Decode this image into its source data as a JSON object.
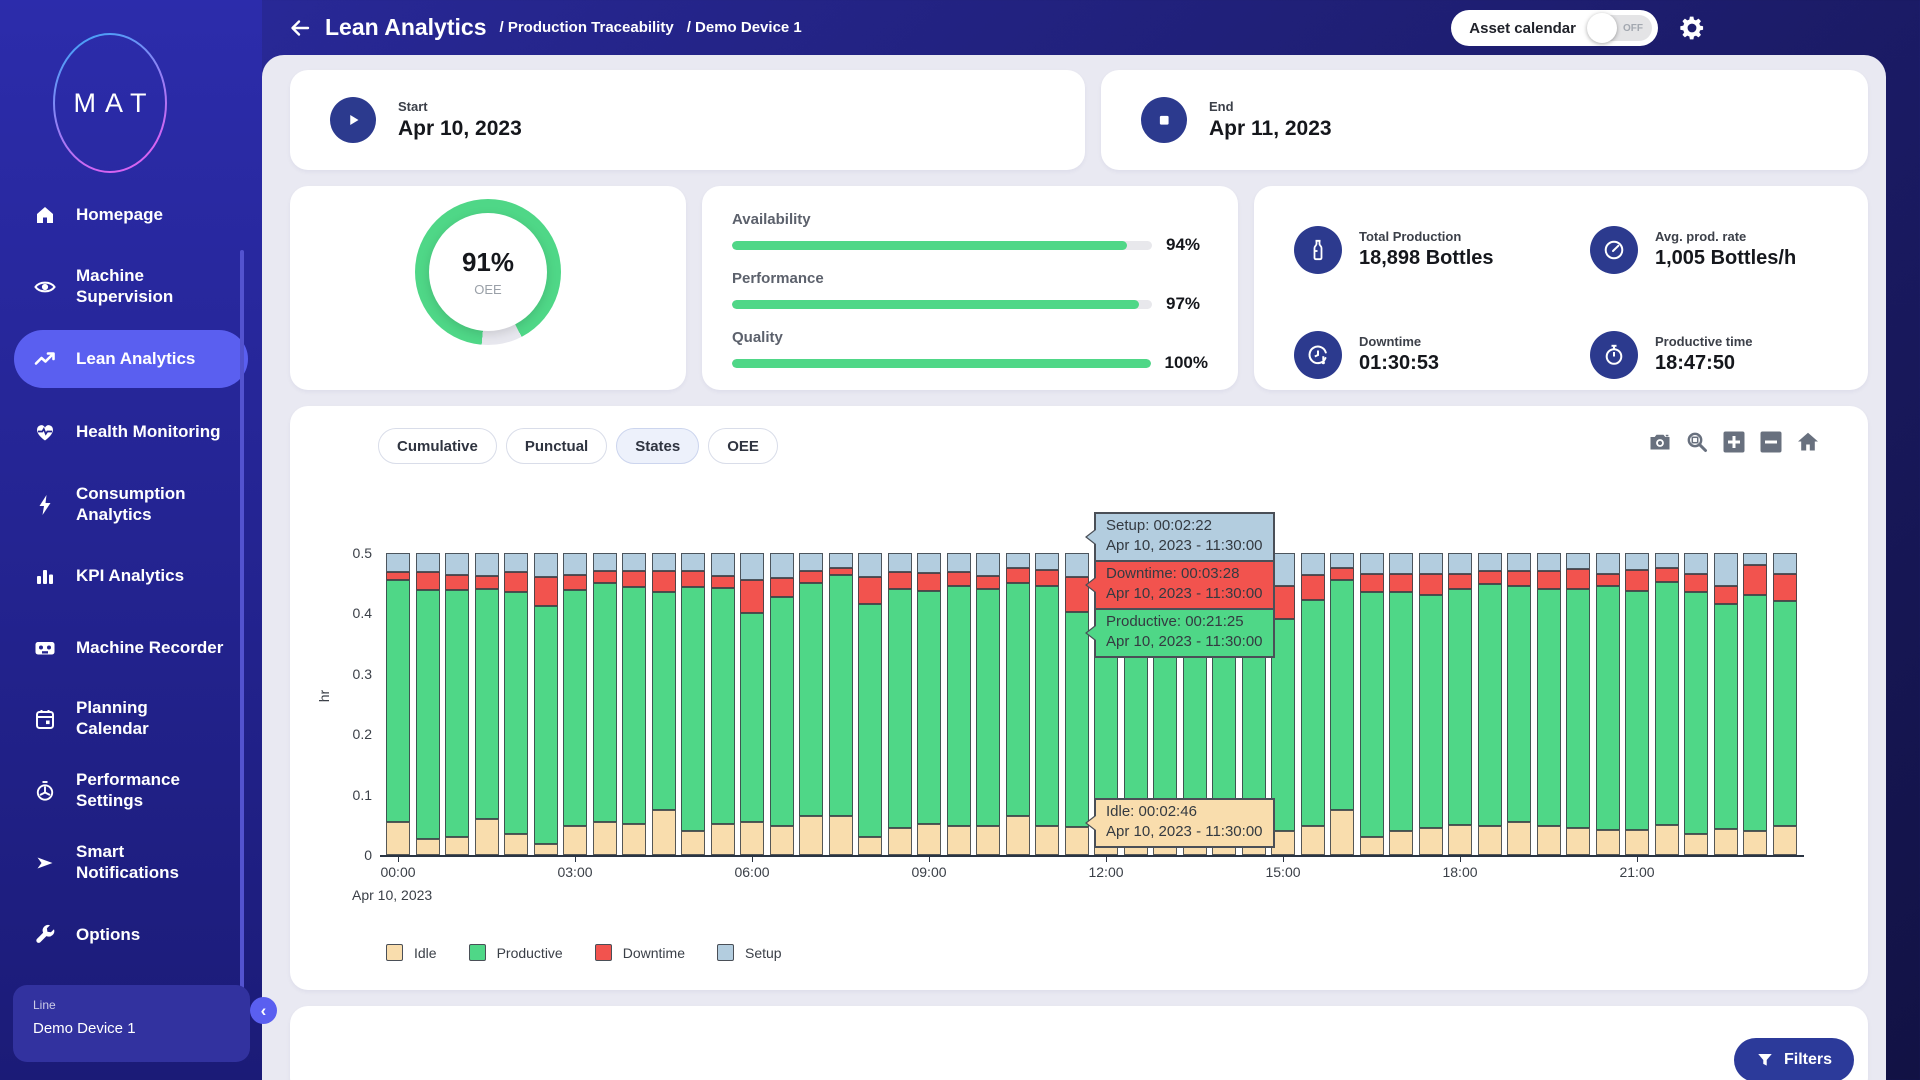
{
  "header": {
    "title": "Lean Analytics",
    "breadcrumb1": "/ Production Traceability",
    "breadcrumb2": "/ Demo Device 1",
    "asset_calendar_label": "Asset calendar",
    "toggle_state": "OFF"
  },
  "sidebar": {
    "logo_text": "MAT",
    "items": [
      {
        "label": "Homepage"
      },
      {
        "label": "Machine Supervision"
      },
      {
        "label": "Lean Analytics",
        "active": true
      },
      {
        "label": "Health Monitoring"
      },
      {
        "label": "Consumption Analytics"
      },
      {
        "label": "KPI Analytics"
      },
      {
        "label": "Machine Recorder"
      },
      {
        "label": "Planning Calendar"
      },
      {
        "label": "Performance Settings"
      },
      {
        "label": "Smart Notifications"
      },
      {
        "label": "Options"
      }
    ],
    "line_label": "Line",
    "line_value": "Demo Device 1",
    "collapse_glyph": "‹"
  },
  "period": {
    "start_label": "Start",
    "start_value": "Apr 10, 2023",
    "end_label": "End",
    "end_value": "Apr 11, 2023"
  },
  "oee": {
    "value": "91%",
    "label": "OEE",
    "percent": 91,
    "color": "#4fd787"
  },
  "kpis": [
    {
      "label": "Availability",
      "value": "94%",
      "percent": 94
    },
    {
      "label": "Performance",
      "value": "97%",
      "percent": 97
    },
    {
      "label": "Quality",
      "value": "100%",
      "percent": 100
    }
  ],
  "stats": [
    {
      "label": "Total Production",
      "value": "18,898 Bottles"
    },
    {
      "label": "Avg. prod. rate",
      "value": "1,005 Bottles/h"
    },
    {
      "label": "Downtime",
      "value": "01:30:53"
    },
    {
      "label": "Productive time",
      "value": "18:47:50"
    }
  ],
  "tabs": [
    {
      "label": "Cumulative",
      "active": false
    },
    {
      "label": "Punctual",
      "active": false
    },
    {
      "label": "States",
      "active": true
    },
    {
      "label": "OEE",
      "active": false
    }
  ],
  "chart_data": {
    "type": "bar",
    "stacked": true,
    "ylabel": "hr",
    "ylim": [
      0,
      0.5
    ],
    "yticks": [
      0,
      0.1,
      0.2,
      0.3,
      0.4,
      0.5
    ],
    "tick_every": 6,
    "x_axis_date": "Apr 10, 2023",
    "x": [
      "00:00",
      "00:30",
      "01:00",
      "01:30",
      "02:00",
      "02:30",
      "03:00",
      "03:30",
      "04:00",
      "04:30",
      "05:00",
      "05:30",
      "06:00",
      "06:30",
      "07:00",
      "07:30",
      "08:00",
      "08:30",
      "09:00",
      "09:30",
      "10:00",
      "10:30",
      "11:00",
      "11:30",
      "12:00",
      "12:30",
      "13:00",
      "13:30",
      "14:00",
      "14:30",
      "15:00",
      "15:30",
      "16:00",
      "16:30",
      "17:00",
      "17:30",
      "18:00",
      "18:30",
      "19:00",
      "19:30",
      "20:00",
      "20:30",
      "21:00",
      "21:30",
      "22:00",
      "22:30",
      "23:00",
      "23:30"
    ],
    "series": [
      {
        "name": "Idle",
        "color": "#f9ddad",
        "values": [
          0.055,
          0.027,
          0.03,
          0.06,
          0.035,
          0.018,
          0.048,
          0.055,
          0.052,
          0.075,
          0.04,
          0.052,
          0.055,
          0.048,
          0.065,
          0.065,
          0.03,
          0.045,
          0.052,
          0.048,
          0.048,
          0.065,
          0.048,
          0.046,
          0.05,
          0.05,
          0.055,
          0.055,
          0.052,
          0.055,
          0.04,
          0.048,
          0.075,
          0.03,
          0.04,
          0.045,
          0.05,
          0.048,
          0.055,
          0.048,
          0.045,
          0.042,
          0.042,
          0.05,
          0.035,
          0.043,
          0.04,
          0.048
        ]
      },
      {
        "name": "Productive",
        "color": "#4fd787",
        "values": [
          0.4,
          0.411,
          0.408,
          0.38,
          0.4,
          0.395,
          0.39,
          0.395,
          0.392,
          0.36,
          0.403,
          0.39,
          0.345,
          0.38,
          0.385,
          0.398,
          0.385,
          0.395,
          0.385,
          0.398,
          0.392,
          0.385,
          0.398,
          0.357,
          0.39,
          0.395,
          0.39,
          0.4,
          0.395,
          0.4,
          0.35,
          0.375,
          0.38,
          0.405,
          0.395,
          0.385,
          0.39,
          0.4,
          0.39,
          0.392,
          0.395,
          0.403,
          0.395,
          0.402,
          0.4,
          0.372,
          0.39,
          0.372
        ]
      },
      {
        "name": "Downtime",
        "color": "#f2534e",
        "values": [
          0.013,
          0.03,
          0.025,
          0.022,
          0.033,
          0.047,
          0.025,
          0.02,
          0.026,
          0.035,
          0.027,
          0.02,
          0.055,
          0.03,
          0.02,
          0.012,
          0.045,
          0.028,
          0.03,
          0.022,
          0.022,
          0.025,
          0.026,
          0.058,
          0.028,
          0.025,
          0.025,
          0.02,
          0.023,
          0.02,
          0.055,
          0.04,
          0.02,
          0.03,
          0.03,
          0.035,
          0.025,
          0.022,
          0.025,
          0.03,
          0.033,
          0.02,
          0.035,
          0.023,
          0.03,
          0.03,
          0.05,
          0.045
        ]
      },
      {
        "name": "Setup",
        "color": "#b3cddf",
        "values": [
          0.032,
          0.032,
          0.037,
          0.038,
          0.032,
          0.04,
          0.037,
          0.03,
          0.03,
          0.03,
          0.03,
          0.038,
          0.045,
          0.042,
          0.03,
          0.025,
          0.04,
          0.032,
          0.033,
          0.032,
          0.038,
          0.025,
          0.028,
          0.039,
          0.032,
          0.03,
          0.03,
          0.025,
          0.03,
          0.025,
          0.055,
          0.037,
          0.025,
          0.035,
          0.035,
          0.035,
          0.035,
          0.03,
          0.03,
          0.03,
          0.027,
          0.035,
          0.028,
          0.025,
          0.035,
          0.055,
          0.02,
          0.035
        ]
      }
    ]
  },
  "tooltips": [
    {
      "line1": "Setup: 00:02:22",
      "line2": "Apr 10, 2023 - 11:30:00"
    },
    {
      "line1": "Downtime: 00:03:28",
      "line2": "Apr 10, 2023 - 11:30:00"
    },
    {
      "line1": "Productive: 00:21:25",
      "line2": "Apr 10, 2023 - 11:30:00"
    },
    {
      "line1": "Idle: 00:02:46",
      "line2": "Apr 10, 2023 - 11:30:00"
    }
  ],
  "filters_button": {
    "label": "Filters"
  }
}
